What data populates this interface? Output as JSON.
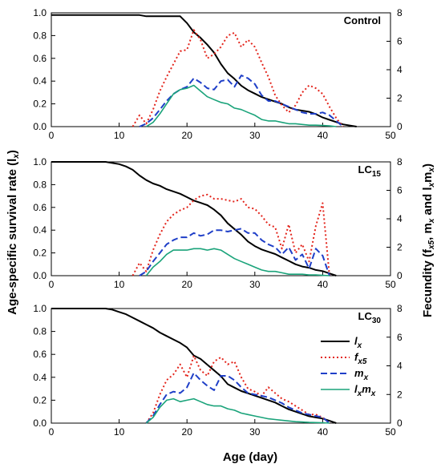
{
  "figure": {
    "xlabel": "Age (day)",
    "ylabel_left": "Age-specific survival  rate  (l<sub>x</sub>)",
    "ylabel_right": "Fecundity (f<sub>x5</sub>, m<sub>x</sub> and l<sub>x</sub>m<sub>x</sub>)",
    "colors": {
      "lx": "#000000",
      "fx5": "#e3241b",
      "mx": "#1f3fc8",
      "lxmx": "#1aa37a"
    },
    "legend": [
      {
        "key": "lx",
        "main": "l",
        "sub": "x"
      },
      {
        "key": "fx5",
        "main": "f",
        "sub": "x5"
      },
      {
        "key": "mx",
        "main": "m",
        "sub": "x"
      },
      {
        "key": "lxmx",
        "main": "l",
        "sub": "x",
        "main2": "m",
        "sub2": "x"
      }
    ],
    "legend_placement": "right side of bottom panel"
  },
  "chart_data": [
    {
      "type": "line",
      "label": "Control",
      "label_sub": "",
      "xlim": [
        0,
        50
      ],
      "xticks": [
        0,
        10,
        20,
        30,
        40,
        50
      ],
      "ylim_left": [
        0,
        1.0
      ],
      "yticks_left": [
        "0.0",
        "0.2",
        "0.4",
        "0.6",
        "0.8",
        "1.0"
      ],
      "ylim_right": [
        0,
        8
      ],
      "yticks_right": [
        "0",
        "2",
        "4",
        "6",
        "8"
      ],
      "grid": false,
      "series": [
        {
          "key": "lx",
          "axis": "left",
          "x": [
            0,
            13,
            14,
            18,
            19,
            20,
            21,
            22,
            23,
            24,
            25,
            26,
            27,
            28,
            29,
            30,
            31,
            32,
            33,
            34,
            35,
            36,
            37,
            38,
            39,
            40,
            41,
            42,
            43,
            44,
            45
          ],
          "y": [
            0.98,
            0.98,
            0.97,
            0.97,
            0.97,
            0.91,
            0.83,
            0.78,
            0.72,
            0.65,
            0.55,
            0.47,
            0.42,
            0.36,
            0.32,
            0.29,
            0.26,
            0.24,
            0.22,
            0.2,
            0.17,
            0.15,
            0.14,
            0.13,
            0.11,
            0.08,
            0.06,
            0.04,
            0.02,
            0.01,
            0.0
          ]
        },
        {
          "key": "fx5",
          "axis": "right",
          "x": [
            12,
            13,
            14,
            15,
            16,
            17,
            18,
            19,
            20,
            21,
            22,
            23,
            24,
            25,
            26,
            27,
            28,
            29,
            30,
            31,
            32,
            33,
            34,
            35,
            36,
            37,
            38,
            39,
            40,
            41,
            42,
            43
          ],
          "y": [
            0,
            0.8,
            0.2,
            1.2,
            2.5,
            3.5,
            4.4,
            5.3,
            5.4,
            6.8,
            6.1,
            4.8,
            5.1,
            5.6,
            6.4,
            6.6,
            5.6,
            6.1,
            5.6,
            4.5,
            3.5,
            2.2,
            1.5,
            1.0,
            1.5,
            2.4,
            2.9,
            2.7,
            2.3,
            1.4,
            0.6,
            0
          ]
        },
        {
          "key": "mx",
          "axis": "right",
          "x": [
            13,
            14,
            15,
            16,
            17,
            18,
            19,
            20,
            21,
            22,
            23,
            24,
            25,
            26,
            27,
            28,
            29,
            30,
            31,
            32,
            33,
            34,
            35,
            36,
            37,
            38,
            39,
            40,
            41,
            42,
            43
          ],
          "y": [
            0,
            0.2,
            0.6,
            1.2,
            1.8,
            2.3,
            2.6,
            2.8,
            3.4,
            3.1,
            2.7,
            2.6,
            3.2,
            3.3,
            2.8,
            3.6,
            3.4,
            3.0,
            2.2,
            1.8,
            1.8,
            1.6,
            1.4,
            1.2,
            1.0,
            0.9,
            0.9,
            1.0,
            0.8,
            0.4,
            0
          ]
        },
        {
          "key": "lxmx",
          "axis": "right",
          "x": [
            14,
            15,
            16,
            17,
            18,
            19,
            20,
            21,
            22,
            23,
            24,
            25,
            26,
            27,
            28,
            29,
            30,
            31,
            32,
            33,
            34,
            35,
            36,
            37,
            38,
            39,
            40,
            41,
            42
          ],
          "y": [
            0,
            0.3,
            0.9,
            1.6,
            2.3,
            2.6,
            2.7,
            2.9,
            2.5,
            2.1,
            1.9,
            1.7,
            1.6,
            1.3,
            1.2,
            1.0,
            0.8,
            0.5,
            0.4,
            0.4,
            0.3,
            0.2,
            0.2,
            0.15,
            0.1,
            0.1,
            0.08,
            0.05,
            0
          ]
        }
      ]
    },
    {
      "type": "line",
      "label": "LC",
      "label_sub": "15",
      "xlim": [
        0,
        50
      ],
      "xticks": [
        0,
        10,
        20,
        30,
        40,
        50
      ],
      "ylim_left": [
        0,
        1.0
      ],
      "yticks_left": [
        "0.0",
        "0.2",
        "0.4",
        "0.6",
        "0.8",
        "1.0"
      ],
      "ylim_right": [
        0,
        8
      ],
      "yticks_right": [
        "0",
        "2",
        "4",
        "6",
        "8"
      ],
      "grid": false,
      "series": [
        {
          "key": "lx",
          "axis": "left",
          "x": [
            0,
            8,
            9,
            10,
            11,
            12,
            13,
            14,
            15,
            16,
            17,
            18,
            19,
            20,
            21,
            22,
            23,
            24,
            25,
            26,
            27,
            28,
            29,
            30,
            31,
            32,
            33,
            34,
            35,
            36,
            37,
            38,
            39,
            40,
            41,
            42
          ],
          "y": [
            1.0,
            1.0,
            0.99,
            0.98,
            0.96,
            0.93,
            0.88,
            0.84,
            0.81,
            0.79,
            0.76,
            0.74,
            0.72,
            0.69,
            0.66,
            0.64,
            0.62,
            0.58,
            0.53,
            0.46,
            0.41,
            0.36,
            0.3,
            0.26,
            0.23,
            0.21,
            0.19,
            0.16,
            0.13,
            0.1,
            0.08,
            0.07,
            0.05,
            0.04,
            0.02,
            0.0
          ]
        },
        {
          "key": "fx5",
          "axis": "right",
          "x": [
            12,
            13,
            14,
            15,
            16,
            17,
            18,
            19,
            20,
            21,
            22,
            23,
            24,
            25,
            26,
            27,
            28,
            29,
            30,
            31,
            32,
            33,
            34,
            35,
            36,
            37,
            38,
            39,
            40,
            41
          ],
          "y": [
            0,
            0.9,
            0.3,
            1.8,
            2.9,
            3.8,
            4.3,
            4.6,
            4.8,
            5.3,
            5.6,
            5.7,
            5.4,
            5.4,
            5.3,
            5.2,
            5.4,
            4.8,
            4.7,
            4.2,
            3.6,
            3.4,
            1.9,
            3.6,
            1.6,
            2.2,
            1.0,
            3.5,
            5.1,
            0
          ]
        },
        {
          "key": "mx",
          "axis": "right",
          "x": [
            13,
            14,
            15,
            16,
            17,
            18,
            19,
            20,
            21,
            22,
            23,
            24,
            25,
            26,
            27,
            28,
            29,
            30,
            31,
            32,
            33,
            34,
            35,
            36,
            37,
            38,
            39,
            40,
            41
          ],
          "y": [
            0,
            0.3,
            1.0,
            1.6,
            2.2,
            2.5,
            2.7,
            2.7,
            3.0,
            2.8,
            2.9,
            3.2,
            3.2,
            3.1,
            3.2,
            3.3,
            3.0,
            3.0,
            2.5,
            2.2,
            2.0,
            1.5,
            2.0,
            1.1,
            1.5,
            0.5,
            1.9,
            1.4,
            0
          ]
        },
        {
          "key": "lxmx",
          "axis": "right",
          "x": [
            14,
            15,
            16,
            17,
            18,
            19,
            20,
            21,
            22,
            23,
            24,
            25,
            26,
            27,
            28,
            29,
            30,
            31,
            32,
            33,
            34,
            35,
            36,
            37,
            38,
            39,
            40,
            41
          ],
          "y": [
            0,
            0.6,
            1.0,
            1.5,
            1.8,
            1.8,
            1.8,
            1.9,
            1.9,
            1.8,
            1.9,
            1.8,
            1.5,
            1.2,
            1.0,
            0.8,
            0.6,
            0.4,
            0.3,
            0.3,
            0.2,
            0.1,
            0.1,
            0.1,
            0.05,
            0.05,
            0.02,
            0
          ]
        }
      ]
    },
    {
      "type": "line",
      "label": "LC",
      "label_sub": "30",
      "xlim": [
        0,
        50
      ],
      "xticks": [
        0,
        10,
        20,
        30,
        40,
        50
      ],
      "ylim_left": [
        0,
        1.0
      ],
      "yticks_left": [
        "0.0",
        "0.2",
        "0.4",
        "0.6",
        "0.8",
        "1.0"
      ],
      "ylim_right": [
        0,
        8
      ],
      "yticks_right": [
        "0",
        "2",
        "4",
        "6",
        "8"
      ],
      "grid": false,
      "series": [
        {
          "key": "lx",
          "axis": "left",
          "x": [
            0,
            8,
            9,
            10,
            11,
            12,
            13,
            14,
            15,
            16,
            17,
            18,
            19,
            20,
            21,
            22,
            23,
            24,
            25,
            26,
            27,
            28,
            29,
            30,
            31,
            32,
            33,
            34,
            35,
            36,
            37,
            38,
            39,
            40,
            41,
            42
          ],
          "y": [
            1.0,
            1.0,
            0.99,
            0.97,
            0.95,
            0.92,
            0.89,
            0.86,
            0.83,
            0.79,
            0.76,
            0.73,
            0.7,
            0.66,
            0.59,
            0.56,
            0.51,
            0.46,
            0.41,
            0.34,
            0.31,
            0.28,
            0.26,
            0.24,
            0.22,
            0.2,
            0.18,
            0.15,
            0.12,
            0.1,
            0.08,
            0.06,
            0.05,
            0.04,
            0.02,
            0.0
          ]
        },
        {
          "key": "fx5",
          "axis": "right",
          "x": [
            14,
            15,
            16,
            17,
            18,
            19,
            20,
            21,
            22,
            23,
            24,
            25,
            26,
            27,
            28,
            29,
            30,
            31,
            32,
            33,
            34,
            35,
            36,
            37,
            38,
            39,
            40,
            41
          ],
          "y": [
            0,
            0.7,
            2.0,
            3.0,
            3.4,
            4.1,
            3.2,
            4.7,
            3.7,
            3.3,
            4.3,
            4.6,
            4.1,
            4.3,
            3.2,
            2.4,
            2.2,
            1.9,
            2.5,
            2.1,
            1.7,
            1.5,
            1.2,
            0.9,
            0.6,
            0.6,
            0.4,
            0
          ]
        },
        {
          "key": "mx",
          "axis": "right",
          "x": [
            14,
            15,
            16,
            17,
            18,
            19,
            20,
            21,
            22,
            23,
            24,
            25,
            26,
            27,
            28,
            29,
            30,
            31,
            32,
            33,
            34,
            35,
            36,
            37,
            38,
            39,
            40,
            41
          ],
          "y": [
            0,
            0.5,
            1.3,
            2.0,
            2.2,
            2.1,
            2.5,
            3.5,
            3.0,
            2.6,
            2.3,
            3.3,
            3.3,
            3.0,
            2.5,
            2.1,
            2.0,
            1.9,
            1.8,
            1.6,
            1.4,
            1.1,
            0.9,
            0.7,
            0.6,
            0.5,
            0.4,
            0
          ]
        },
        {
          "key": "lxmx",
          "axis": "right",
          "x": [
            14,
            15,
            16,
            17,
            18,
            19,
            20,
            21,
            22,
            23,
            24,
            25,
            26,
            27,
            28,
            29,
            30,
            31,
            32,
            33,
            34,
            35,
            36,
            37,
            38,
            39,
            40,
            41
          ],
          "y": [
            0,
            0.4,
            1.1,
            1.6,
            1.7,
            1.5,
            1.6,
            1.7,
            1.5,
            1.3,
            1.2,
            1.2,
            1.0,
            0.9,
            0.7,
            0.6,
            0.5,
            0.4,
            0.3,
            0.25,
            0.2,
            0.15,
            0.1,
            0.08,
            0.05,
            0.04,
            0.03,
            0
          ]
        }
      ]
    }
  ]
}
